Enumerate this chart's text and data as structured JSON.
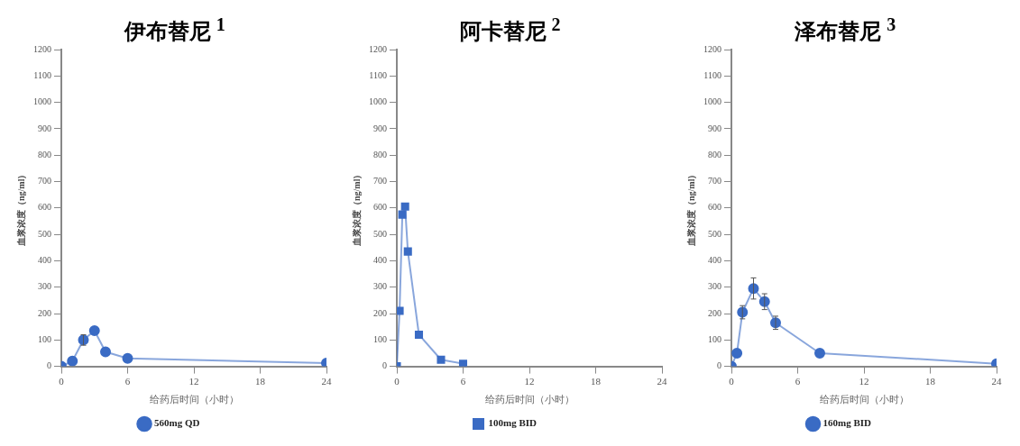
{
  "chart_data": [
    {
      "type": "line",
      "title": "伊布替尼 $^{1}$",
      "xlabel": "给药后时间（小时）",
      "ylabel": "血浆浓度（ng/ml）",
      "x": [
        0,
        1,
        2,
        3,
        4,
        6,
        24
      ],
      "xlim": [
        0,
        24
      ],
      "xticks": [
        0,
        6,
        12,
        18,
        24
      ],
      "ylim": [
        0,
        1200
      ],
      "yticks": [
        0,
        100,
        200,
        300,
        400,
        500,
        600,
        700,
        800,
        900,
        1000,
        1100,
        1200
      ],
      "marker": "circle",
      "legend": "bottom",
      "grid": false,
      "series": [
        {
          "name": "560mg QD",
          "color": "#3a6bc4",
          "values": [
            0,
            20,
            100,
            135,
            55,
            30,
            12
          ],
          "errors": [
            null,
            null,
            20,
            null,
            null,
            null,
            null
          ]
        }
      ]
    },
    {
      "type": "line",
      "title": "阿卡替尼 $^{2}$",
      "xlabel": "给药后时间（小时）",
      "ylabel": "血浆浓度（ng/ml）",
      "x": [
        0,
        0.25,
        0.5,
        0.75,
        1,
        2,
        4,
        6
      ],
      "xlim": [
        0,
        24
      ],
      "xticks": [
        0,
        6,
        12,
        18,
        24
      ],
      "ylim": [
        0,
        1200
      ],
      "yticks": [
        0,
        100,
        200,
        300,
        400,
        500,
        600,
        700,
        800,
        900,
        1000,
        1100,
        1200
      ],
      "marker": "square",
      "legend": "bottom",
      "grid": false,
      "series": [
        {
          "name": "100mg BID",
          "color": "#3a6bc4",
          "values": [
            0,
            210,
            575,
            605,
            435,
            120,
            25,
            10
          ]
        }
      ]
    },
    {
      "type": "line",
      "title": "泽布替尼 $^{3}$",
      "xlabel": "给药后时间（小时）",
      "ylabel": "血浆浓度（ng/ml）",
      "x": [
        0,
        0.5,
        1,
        2,
        3,
        4,
        8,
        24
      ],
      "xlim": [
        0,
        24
      ],
      "xticks": [
        0,
        6,
        12,
        18,
        24
      ],
      "ylim": [
        0,
        1200
      ],
      "yticks": [
        0,
        100,
        200,
        300,
        400,
        500,
        600,
        700,
        800,
        900,
        1000,
        1100,
        1200
      ],
      "marker": "circle",
      "legend": "bottom",
      "grid": false,
      "series": [
        {
          "name": "160mg BID",
          "color": "#3a6bc4",
          "values": [
            0,
            50,
            205,
            295,
            245,
            165,
            50,
            10
          ],
          "errors": [
            null,
            null,
            25,
            40,
            30,
            25,
            null,
            null
          ]
        }
      ]
    }
  ]
}
